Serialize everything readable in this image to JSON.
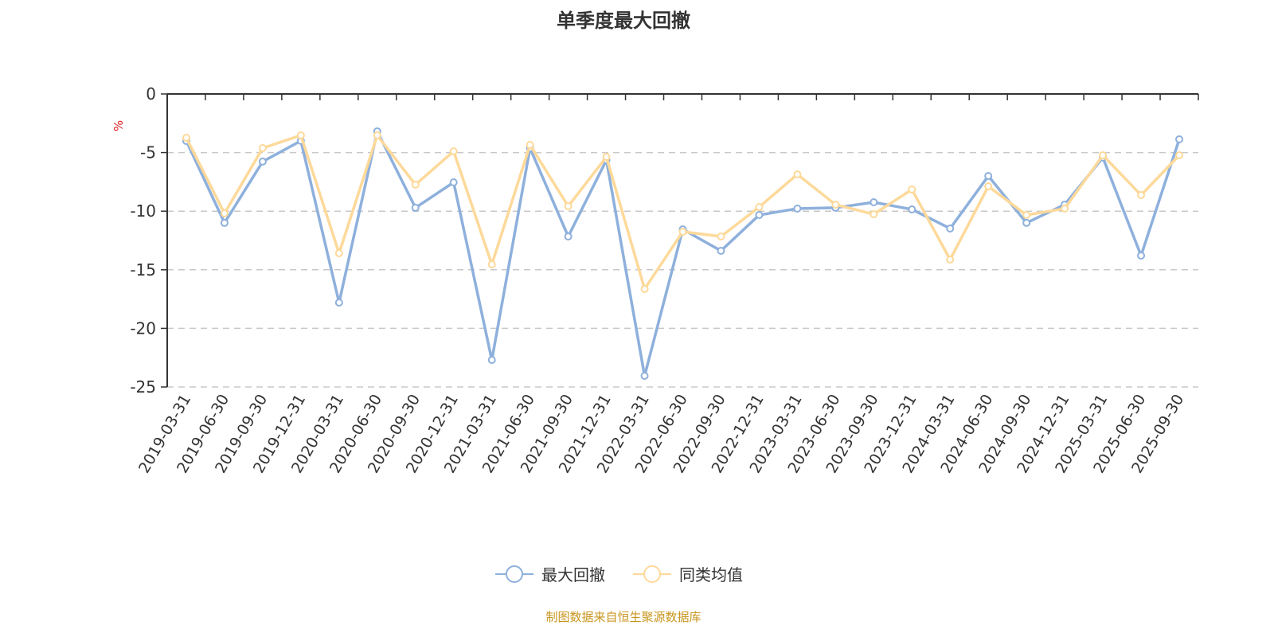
{
  "chart_data": {
    "type": "line",
    "title": "单季度最大回撤",
    "ylabel": "%",
    "ylim": [
      -25,
      0
    ],
    "yticks": [
      0,
      -5,
      -10,
      -15,
      -20,
      -25
    ],
    "grid": true,
    "legend_position": "bottom",
    "categories": [
      "2019-03-31",
      "2019-06-30",
      "2019-09-30",
      "2019-12-31",
      "2020-03-31",
      "2020-06-30",
      "2020-09-30",
      "2020-12-31",
      "2021-03-31",
      "2021-06-30",
      "2021-09-30",
      "2021-12-31",
      "2022-03-31",
      "2022-06-30",
      "2022-09-30",
      "2022-12-31",
      "2023-03-31",
      "2023-06-30",
      "2023-09-30",
      "2023-12-31",
      "2024-03-31",
      "2024-06-30",
      "2024-09-30",
      "2024-12-31",
      "2025-03-31",
      "2025-06-30",
      "2025-09-30"
    ],
    "series": [
      {
        "name": "最大回撤",
        "color": "#8eb0dc",
        "values": [
          -4.01,
          -11.0,
          -5.77,
          -4.0,
          -17.8,
          -3.19,
          -9.71,
          -7.54,
          -22.7,
          -4.62,
          -12.16,
          -5.64,
          -24.05,
          -11.55,
          -13.38,
          -10.33,
          -9.78,
          -9.71,
          -9.24,
          -9.85,
          -11.48,
          -7.0,
          -11.0,
          -9.44,
          -5.43,
          -13.79,
          -3.87
        ]
      },
      {
        "name": "同类均值",
        "color": "#fdd99a",
        "values": [
          -3.74,
          -10.19,
          -4.62,
          -3.53,
          -13.59,
          -3.53,
          -7.74,
          -4.89,
          -14.54,
          -4.35,
          -9.58,
          -5.37,
          -16.64,
          -11.75,
          -12.16,
          -9.65,
          -6.86,
          -9.44,
          -10.26,
          -8.15,
          -14.13,
          -7.88,
          -10.33,
          -9.78,
          -5.23,
          -8.63,
          -5.23
        ]
      }
    ]
  },
  "source": "制图数据来自恒生聚源数据库"
}
